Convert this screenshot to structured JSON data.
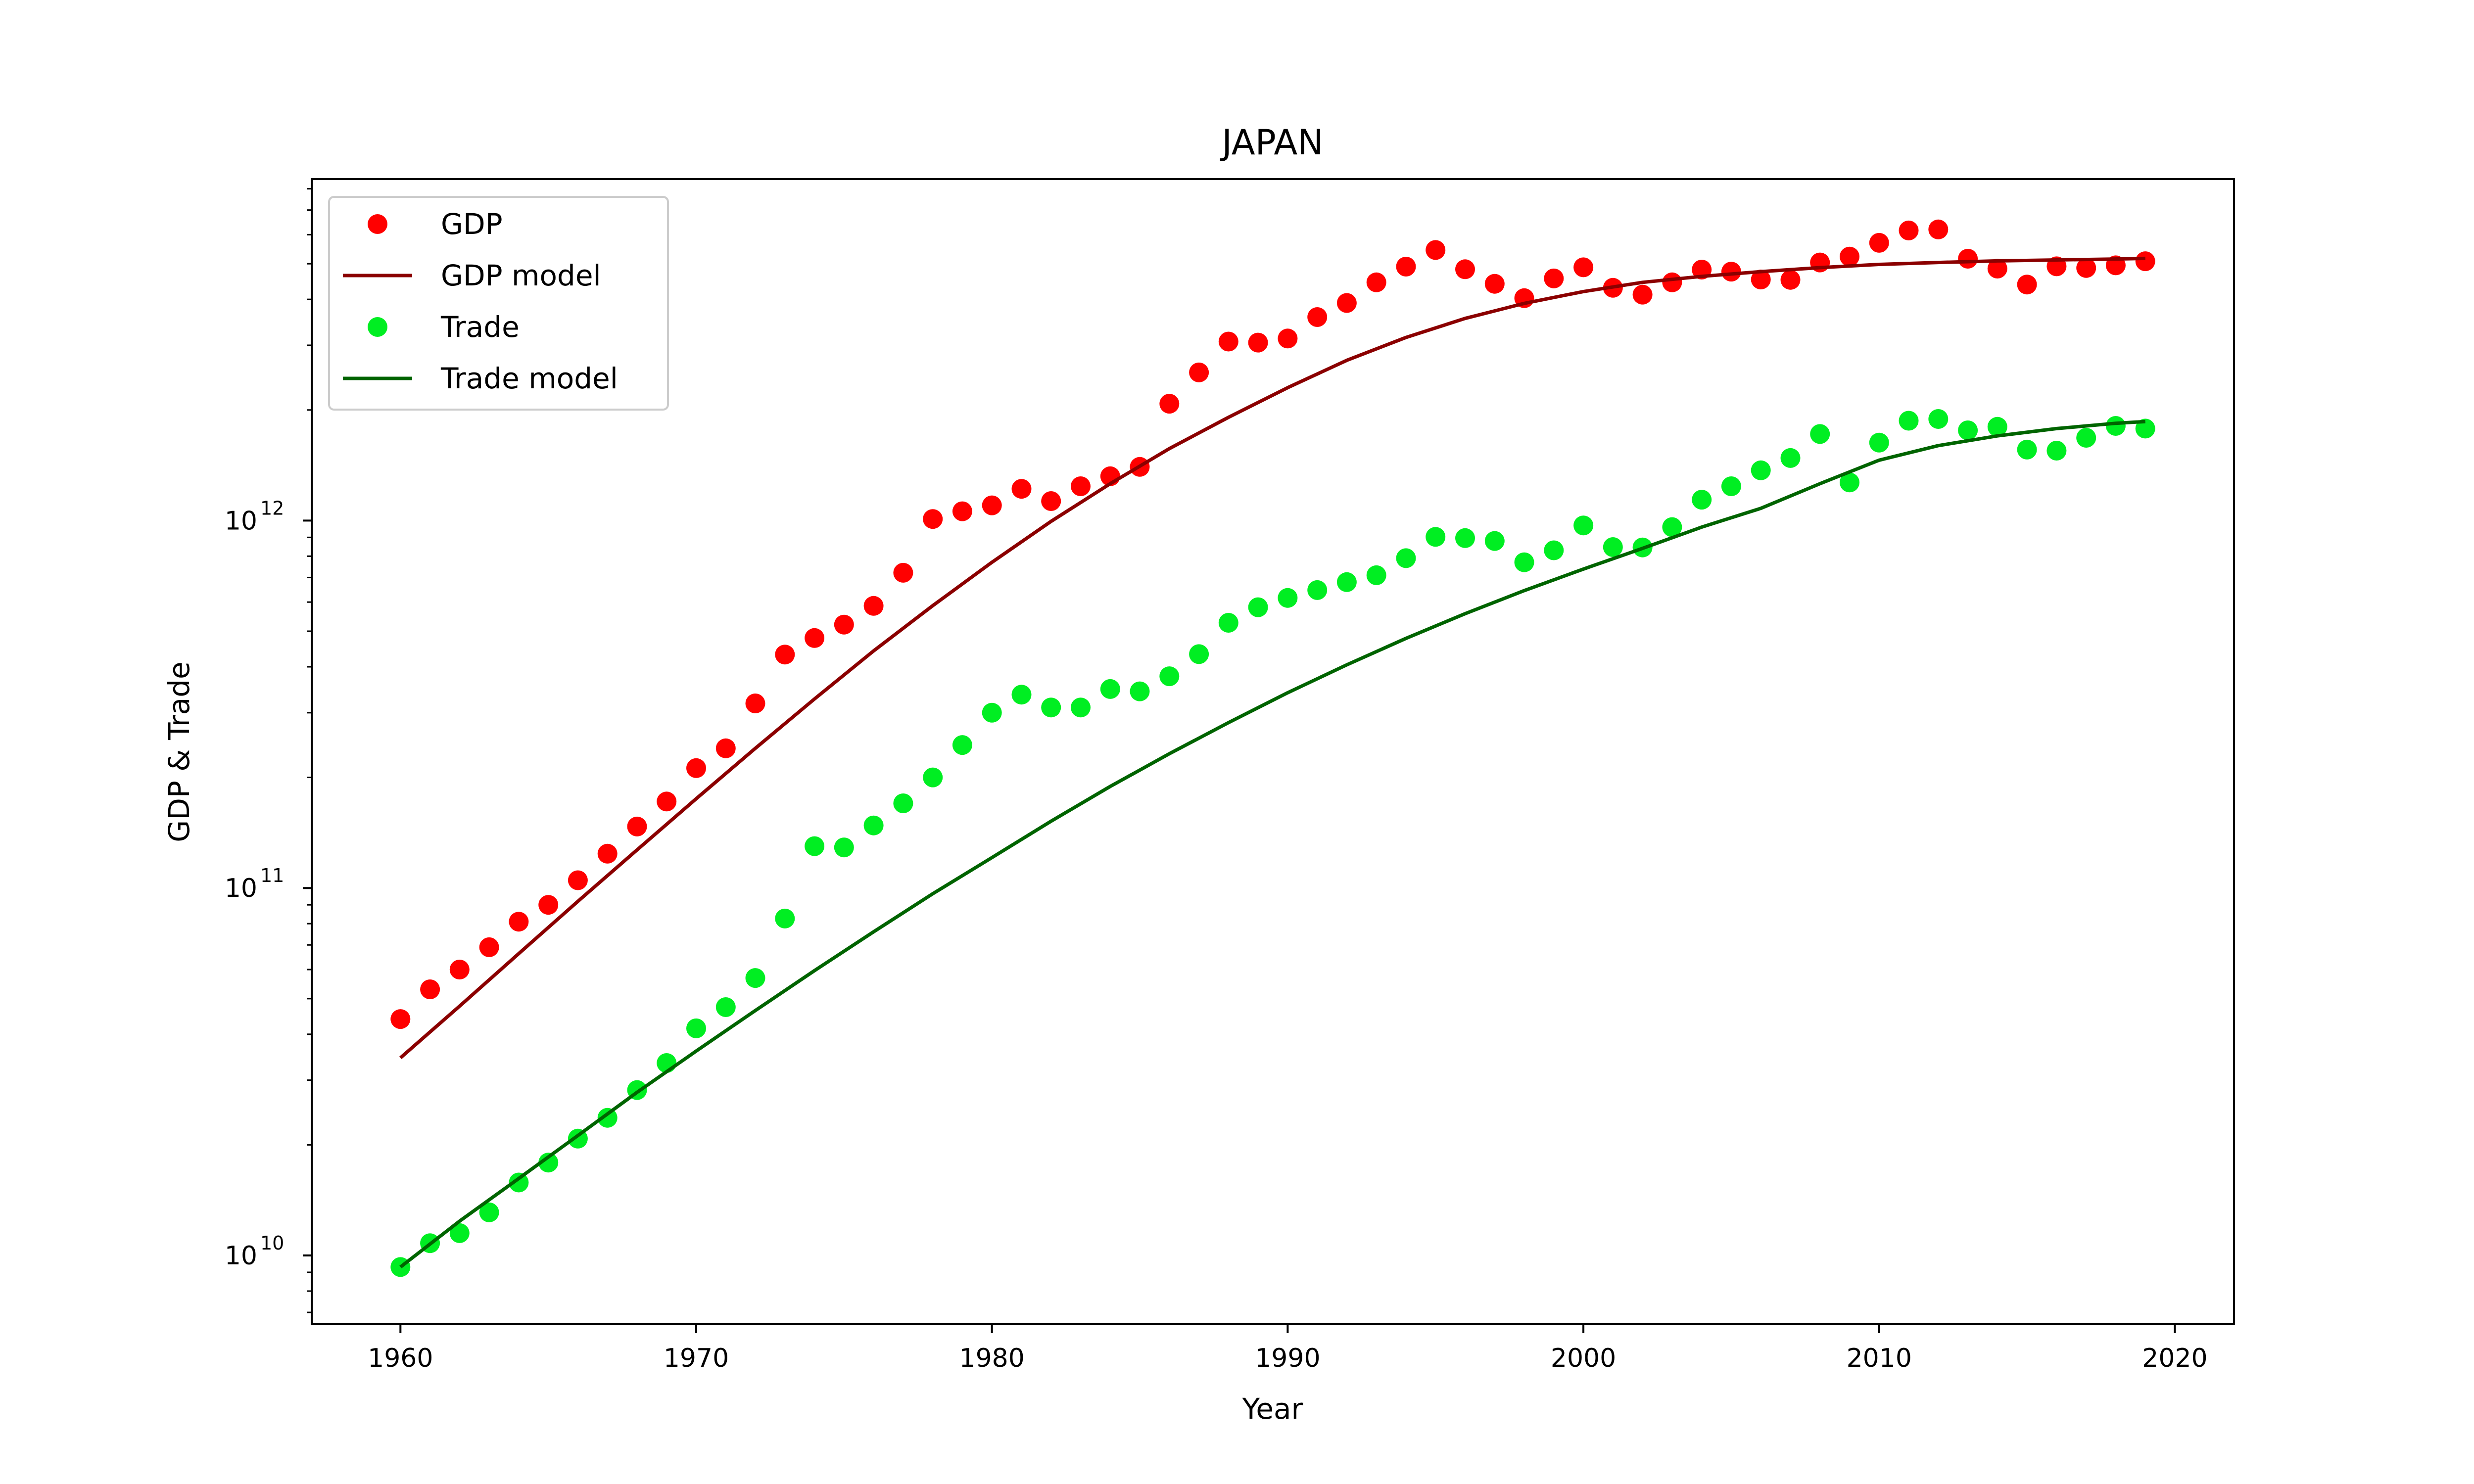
{
  "chart_data": {
    "type": "scatter",
    "title": "JAPAN",
    "xlabel": "Year",
    "ylabel": "GDP & Trade",
    "yscale": "log",
    "xlim": [
      1957,
      2022
    ],
    "ylim": [
      6500000000.0,
      8500000000000.0
    ],
    "xticks": [
      1960,
      1970,
      1980,
      1990,
      2000,
      2010,
      2020
    ],
    "yticks": [
      {
        "value": 10000000000.0,
        "base": "10",
        "exp": "10"
      },
      {
        "value": 100000000000.0,
        "base": "10",
        "exp": "11"
      },
      {
        "value": 1000000000000.0,
        "base": "10",
        "exp": "12"
      }
    ],
    "grid": false,
    "legend_position": "top-left",
    "series": [
      {
        "name": "GDP",
        "kind": "scatter",
        "color": "#ff0000",
        "x": [
          1960,
          1961,
          1962,
          1963,
          1964,
          1965,
          1966,
          1967,
          1968,
          1969,
          1970,
          1971,
          1972,
          1973,
          1974,
          1975,
          1976,
          1977,
          1978,
          1979,
          1980,
          1981,
          1982,
          1983,
          1984,
          1985,
          1986,
          1987,
          1988,
          1989,
          1990,
          1991,
          1992,
          1993,
          1994,
          1995,
          1996,
          1997,
          1998,
          1999,
          2000,
          2001,
          2002,
          2003,
          2004,
          2005,
          2006,
          2007,
          2008,
          2009,
          2010,
          2011,
          2012,
          2013,
          2014,
          2015,
          2016,
          2017,
          2018,
          2019
        ],
        "y": [
          44000000000.0,
          53000000000.0,
          60000000000.0,
          69000000000.0,
          81000000000.0,
          90000000000.0,
          105000000000.0,
          124000000000.0,
          147000000000.0,
          172000000000.0,
          212000000000.0,
          240000000000.0,
          318000000000.0,
          432000000000.0,
          479000000000.0,
          521000000000.0,
          586000000000.0,
          721000000000.0,
          1010000000000.0,
          1060000000000.0,
          1100000000000.0,
          1220000000000.0,
          1130000000000.0,
          1240000000000.0,
          1320000000000.0,
          1400000000000.0,
          2080000000000.0,
          2530000000000.0,
          3070000000000.0,
          3050000000000.0,
          3130000000000.0,
          3580000000000.0,
          3910000000000.0,
          4450000000000.0,
          4910000000000.0,
          5450000000000.0,
          4830000000000.0,
          4410000000000.0,
          4030000000000.0,
          4560000000000.0,
          4890000000000.0,
          4300000000000.0,
          4120000000000.0,
          4450000000000.0,
          4820000000000.0,
          4760000000000.0,
          4530000000000.0,
          4520000000000.0,
          5040000000000.0,
          5230000000000.0,
          5700000000000.0,
          6160000000000.0,
          6200000000000.0,
          5160000000000.0,
          4850000000000.0,
          4390000000000.0,
          4920000000000.0,
          4870000000000.0,
          4950000000000.0,
          5080000000000.0
        ]
      },
      {
        "name": "GDP model",
        "kind": "line",
        "color": "#8b0000",
        "x": [
          1960,
          1962,
          1964,
          1966,
          1968,
          1970,
          1972,
          1974,
          1976,
          1978,
          1980,
          1982,
          1984,
          1986,
          1988,
          1990,
          1992,
          1994,
          1996,
          1998,
          2000,
          2002,
          2004,
          2006,
          2008,
          2010,
          2012,
          2014,
          2016,
          2018,
          2019
        ],
        "y": [
          34500000000.0,
          47700000000.0,
          66300000000.0,
          92000000000.0,
          127000000000.0,
          175000000000.0,
          240000000000.0,
          327000000000.0,
          442000000000.0,
          587000000000.0,
          770000000000.0,
          995000000000.0,
          1260000000000.0,
          1570000000000.0,
          1910000000000.0,
          2300000000000.0,
          2730000000000.0,
          3150000000000.0,
          3550000000000.0,
          3900000000000.0,
          4200000000000.0,
          4450000000000.0,
          4620000000000.0,
          4760000000000.0,
          4880000000000.0,
          4980000000000.0,
          5040000000000.0,
          5090000000000.0,
          5120000000000.0,
          5150000000000.0,
          5170000000000.0
        ]
      },
      {
        "name": "Trade",
        "kind": "scatter",
        "color": "#00ee22",
        "x": [
          1960,
          1961,
          1962,
          1963,
          1964,
          1965,
          1966,
          1967,
          1968,
          1969,
          1970,
          1971,
          1972,
          1973,
          1974,
          1975,
          1976,
          1977,
          1978,
          1979,
          1980,
          1981,
          1982,
          1983,
          1984,
          1985,
          1986,
          1987,
          1988,
          1989,
          1990,
          1991,
          1992,
          1993,
          1994,
          1995,
          1996,
          1997,
          1998,
          1999,
          2000,
          2001,
          2002,
          2003,
          2004,
          2005,
          2006,
          2007,
          2008,
          2009,
          2010,
          2011,
          2012,
          2013,
          2014,
          2015,
          2016,
          2017,
          2018,
          2019
        ],
        "y": [
          9300000000.0,
          10800000000.0,
          11500000000.0,
          13100000000.0,
          15800000000.0,
          17900000000.0,
          20800000000.0,
          23700000000.0,
          28200000000.0,
          33400000000.0,
          41500000000.0,
          47400000000.0,
          56900000000.0,
          82600000000.0,
          130000000000.0,
          129000000000.0,
          148000000000.0,
          170000000000.0,
          200000000000.0,
          245000000000.0,
          300000000000.0,
          336000000000.0,
          310000000000.0,
          310000000000.0,
          348000000000.0,
          343000000000.0,
          377000000000.0,
          433000000000.0,
          527000000000.0,
          581000000000.0,
          616000000000.0,
          647000000000.0,
          680000000000.0,
          710000000000.0,
          790000000000.0,
          903000000000.0,
          896000000000.0,
          880000000000.0,
          770000000000.0,
          830000000000.0,
          970000000000.0,
          847000000000.0,
          845000000000.0,
          960000000000.0,
          1140000000000.0,
          1240000000000.0,
          1370000000000.0,
          1480000000000.0,
          1720000000000.0,
          1270000000000.0,
          1630000000000.0,
          1870000000000.0,
          1890000000000.0,
          1760000000000.0,
          1800000000000.0,
          1560000000000.0,
          1550000000000.0,
          1680000000000.0,
          1810000000000.0,
          1780000000000.0
        ]
      },
      {
        "name": "Trade model",
        "kind": "line",
        "color": "#006400",
        "x": [
          1960,
          1962,
          1964,
          1966,
          1968,
          1970,
          1972,
          1974,
          1976,
          1978,
          1980,
          1982,
          1984,
          1986,
          1988,
          1990,
          1992,
          1994,
          1996,
          1998,
          2000,
          2002,
          2004,
          2006,
          2008,
          2010,
          2012,
          2014,
          2016,
          2018,
          2019
        ],
        "y": [
          9300000000.0,
          12400000000.0,
          16200000000.0,
          21200000000.0,
          27800000000.0,
          36000000000.0,
          46400000000.0,
          59600000000.0,
          76000000000.0,
          96500000000.0,
          121000000000.0,
          152000000000.0,
          189000000000.0,
          232000000000.0,
          282000000000.0,
          340000000000.0,
          405000000000.0,
          478000000000.0,
          558000000000.0,
          645000000000.0,
          738000000000.0,
          840000000000.0,
          960000000000.0,
          1080000000000.0,
          1260000000000.0,
          1460000000000.0,
          1600000000000.0,
          1700000000000.0,
          1780000000000.0,
          1840000000000.0,
          1860000000000.0
        ]
      }
    ]
  }
}
